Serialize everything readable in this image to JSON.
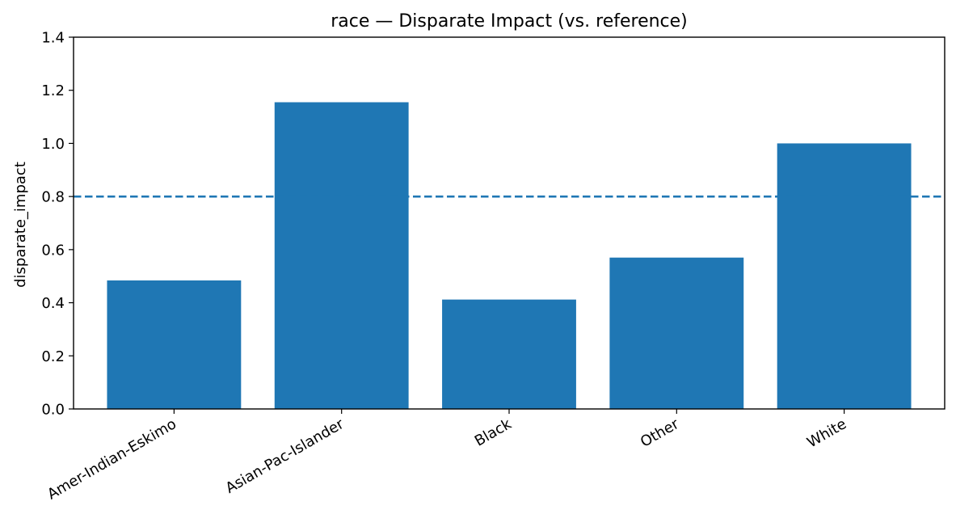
{
  "chart_data": {
    "type": "bar",
    "title": "race — Disparate Impact (vs. reference)",
    "xlabel": "",
    "ylabel": "disparate_impact",
    "categories": [
      "Amer-Indian-Eskimo",
      "Asian-Pac-Islander",
      "Black",
      "Other",
      "White"
    ],
    "values": [
      0.484,
      1.155,
      0.412,
      0.57,
      1.0
    ],
    "ylim": [
      0,
      1.4
    ],
    "yticks": [
      0.0,
      0.2,
      0.4,
      0.6,
      0.8,
      1.0,
      1.2,
      1.4
    ],
    "ytick_labels": [
      "0.0",
      "0.2",
      "0.4",
      "0.6",
      "0.8",
      "1.0",
      "1.2",
      "1.4"
    ],
    "reference_line": {
      "y": 0.8,
      "style": "dashed"
    },
    "grid": false,
    "colors": {
      "bar": "#1f77b4",
      "reference_line": "#1f77b4",
      "axis": "#000000"
    }
  }
}
